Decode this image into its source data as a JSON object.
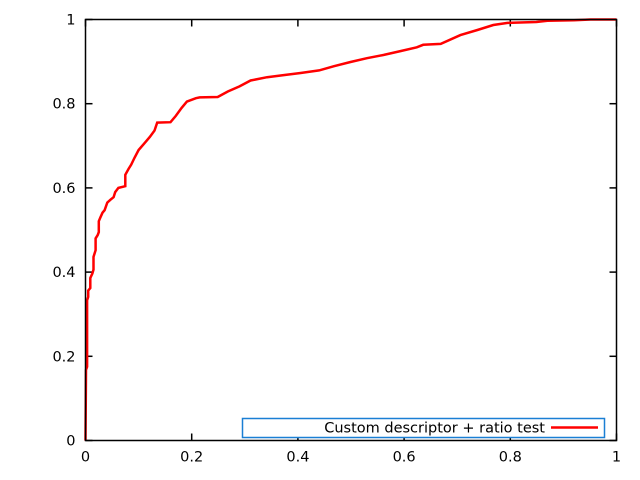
{
  "chart_data": {
    "type": "line",
    "title": "",
    "xlabel": "",
    "ylabel": "",
    "xlim": [
      0,
      1
    ],
    "ylim": [
      0,
      1
    ],
    "grid": false,
    "background_color": "#ffffff",
    "border_color": "#000000",
    "x_ticks": {
      "values": [
        0,
        0.2,
        0.4,
        0.6,
        0.8,
        1
      ],
      "labels": [
        "0",
        "0.2",
        "0.4",
        "0.6",
        "0.8",
        "1"
      ]
    },
    "y_ticks": {
      "values": [
        0,
        0.2,
        0.4,
        0.6,
        0.8,
        1
      ],
      "labels": [
        "0",
        "0.2",
        "0.4",
        "0.6",
        "0.8",
        "1"
      ]
    },
    "legend": {
      "position": "bottom-right",
      "boxed": true,
      "box_border_color": "#1a7fd4",
      "entries": [
        {
          "label": "Custom descriptor + ratio test",
          "color": "#ff0000"
        }
      ]
    },
    "series": [
      {
        "name": "Custom descriptor + ratio test",
        "color": "#ff0000",
        "line_width": 2.5,
        "points": [
          [
            0,
            0
          ],
          [
            0.001,
            0.168
          ],
          [
            0.003,
            0.175
          ],
          [
            0.003,
            0.333
          ],
          [
            0.005,
            0.341
          ],
          [
            0.005,
            0.356
          ],
          [
            0.009,
            0.362
          ],
          [
            0.009,
            0.386
          ],
          [
            0.013,
            0.397
          ],
          [
            0.015,
            0.406
          ],
          [
            0.015,
            0.436
          ],
          [
            0.019,
            0.452
          ],
          [
            0.019,
            0.48
          ],
          [
            0.023,
            0.488
          ],
          [
            0.025,
            0.495
          ],
          [
            0.025,
            0.521
          ],
          [
            0.028,
            0.53
          ],
          [
            0.032,
            0.541
          ],
          [
            0.036,
            0.547
          ],
          [
            0.041,
            0.565
          ],
          [
            0.047,
            0.572
          ],
          [
            0.053,
            0.578
          ],
          [
            0.056,
            0.59
          ],
          [
            0.062,
            0.6
          ],
          [
            0.075,
            0.604
          ],
          [
            0.075,
            0.631
          ],
          [
            0.081,
            0.645
          ],
          [
            0.086,
            0.655
          ],
          [
            0.092,
            0.671
          ],
          [
            0.1,
            0.69
          ],
          [
            0.111,
            0.706
          ],
          [
            0.121,
            0.721
          ],
          [
            0.13,
            0.736
          ],
          [
            0.135,
            0.755
          ],
          [
            0.16,
            0.756
          ],
          [
            0.17,
            0.771
          ],
          [
            0.181,
            0.79
          ],
          [
            0.191,
            0.805
          ],
          [
            0.208,
            0.813
          ],
          [
            0.215,
            0.815
          ],
          [
            0.249,
            0.816
          ],
          [
            0.268,
            0.829
          ],
          [
            0.29,
            0.841
          ],
          [
            0.311,
            0.855
          ],
          [
            0.342,
            0.863
          ],
          [
            0.373,
            0.868
          ],
          [
            0.405,
            0.873
          ],
          [
            0.44,
            0.879
          ],
          [
            0.468,
            0.889
          ],
          [
            0.499,
            0.899
          ],
          [
            0.53,
            0.908
          ],
          [
            0.562,
            0.916
          ],
          [
            0.593,
            0.925
          ],
          [
            0.624,
            0.934
          ],
          [
            0.636,
            0.94
          ],
          [
            0.669,
            0.942
          ],
          [
            0.706,
            0.963
          ],
          [
            0.738,
            0.975
          ],
          [
            0.768,
            0.987
          ],
          [
            0.795,
            0.992
          ],
          [
            0.849,
            0.994
          ],
          [
            0.87,
            0.997
          ],
          [
            0.92,
            0.998
          ],
          [
            0.951,
            1.0
          ],
          [
            1.0,
            1.0
          ]
        ]
      }
    ]
  }
}
